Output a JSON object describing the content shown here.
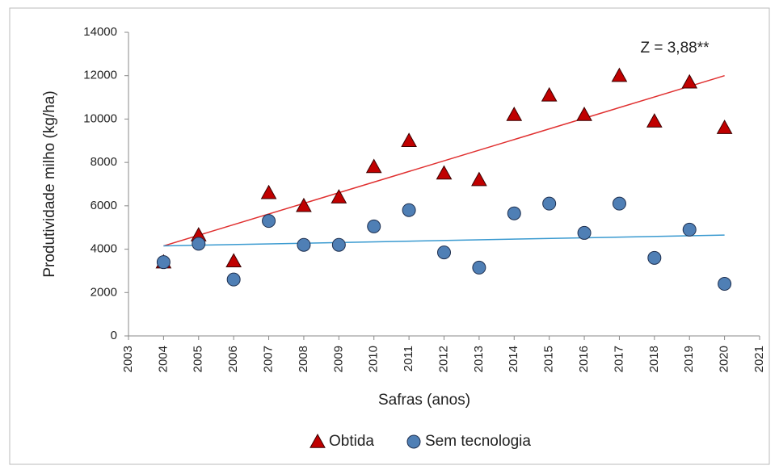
{
  "chart_data": {
    "type": "scatter",
    "xlabel": "Safras (anos)",
    "ylabel": "Produtividade milho (kg/ha)",
    "annotation": "Z = 3,88**",
    "x": [
      2004,
      2005,
      2006,
      2007,
      2008,
      2009,
      2010,
      2011,
      2012,
      2013,
      2014,
      2015,
      2016,
      2017,
      2018,
      2019,
      2020
    ],
    "series": [
      {
        "name": "Obtida",
        "color": "#c00000",
        "marker": "triangle",
        "values": [
          3400,
          4650,
          3450,
          6600,
          6000,
          6400,
          7800,
          9000,
          7500,
          7200,
          10200,
          11100,
          10200,
          12000,
          9900,
          11700,
          9600
        ],
        "trendline": {
          "color": "#e03030",
          "x": [
            2004,
            2020
          ],
          "values": [
            4150,
            12000
          ]
        }
      },
      {
        "name": "Sem tecnologia",
        "color": "#4f7fb5",
        "marker": "circle",
        "values": [
          3400,
          4250,
          2600,
          5300,
          4200,
          4200,
          5050,
          5800,
          3850,
          3150,
          5650,
          6100,
          4750,
          6100,
          3600,
          4900,
          2400
        ],
        "trendline": {
          "color": "#3a9ad0",
          "x": [
            2004,
            2020
          ],
          "values": [
            4150,
            4650
          ]
        }
      }
    ],
    "xlim": [
      2003,
      2021
    ],
    "xticks": [
      2003,
      2004,
      2005,
      2006,
      2007,
      2008,
      2009,
      2010,
      2011,
      2012,
      2013,
      2014,
      2015,
      2016,
      2017,
      2018,
      2019,
      2020,
      2021
    ],
    "ylim": [
      0,
      14000
    ],
    "yticks": [
      0,
      2000,
      4000,
      6000,
      8000,
      10000,
      12000,
      14000
    ],
    "legend": "bottom"
  }
}
